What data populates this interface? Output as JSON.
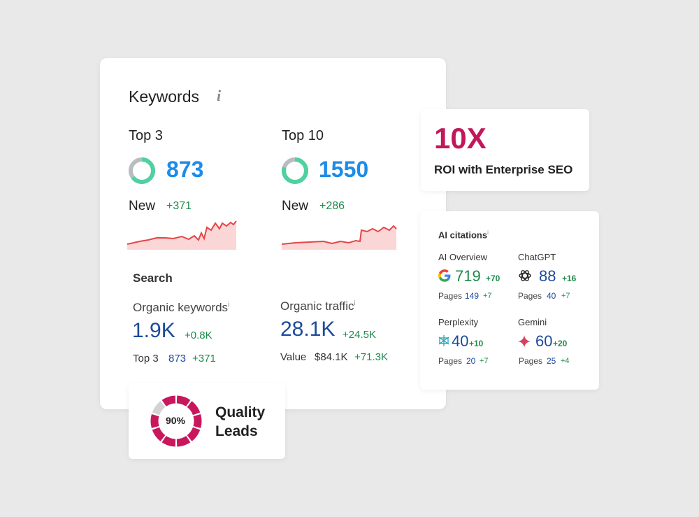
{
  "keywords_card": {
    "title": "Keywords",
    "info_icon": "i",
    "top3": {
      "label": "Top 3",
      "value": "873",
      "new_label": "New",
      "new_delta": "+371"
    },
    "top10": {
      "label": "Top 10",
      "value": "1550",
      "new_label": "New",
      "new_delta": "+286"
    },
    "search": {
      "title": "Search",
      "organic_keywords": {
        "label": "Organic keywords",
        "info": "i",
        "value": "1.9K",
        "delta": "+0.8K",
        "sub_label": "Top 3",
        "sub_value": "873",
        "sub_delta": "+371"
      },
      "organic_traffic": {
        "label": "Organic traffic",
        "info": "i",
        "value": "28.1K",
        "delta": "+24.5K",
        "sub_label": "Value",
        "sub_value": "$84.1K",
        "sub_delta": "+71.3K"
      }
    },
    "colors": {
      "accent_blue": "#1c8ce8",
      "donut_green": "#4fd1a1",
      "donut_gray": "#b9bcc0",
      "spark_line": "#e64545",
      "spark_fill": "#fbd6d6"
    }
  },
  "roi_card": {
    "headline": "10X",
    "subtext": "ROI with Enterprise SEO",
    "color": "#c2185b"
  },
  "ai_card": {
    "title": "AI citations",
    "info": "i",
    "pages_label": "Pages",
    "items": [
      {
        "name": "AI Overview",
        "icon": "google-icon",
        "value": "719",
        "delta": "+70",
        "pages": "149",
        "pages_delta": "+7"
      },
      {
        "name": "ChatGPT",
        "icon": "chatgpt-icon",
        "value": "88",
        "delta": "+16",
        "pages": "40",
        "pages_delta": "+7"
      },
      {
        "name": "Perplexity",
        "icon": "perplexity-icon",
        "value": "40",
        "delta": "+10",
        "pages": "20",
        "pages_delta": "+7"
      },
      {
        "name": "Gemini",
        "icon": "gemini-icon",
        "value": "60",
        "delta": "+20",
        "pages": "25",
        "pages_delta": "+4"
      }
    ]
  },
  "quality_leads": {
    "percent_label": "90%",
    "percent": 0.9,
    "line1": "Quality",
    "line2": "Leads",
    "color": "#c8175d"
  }
}
